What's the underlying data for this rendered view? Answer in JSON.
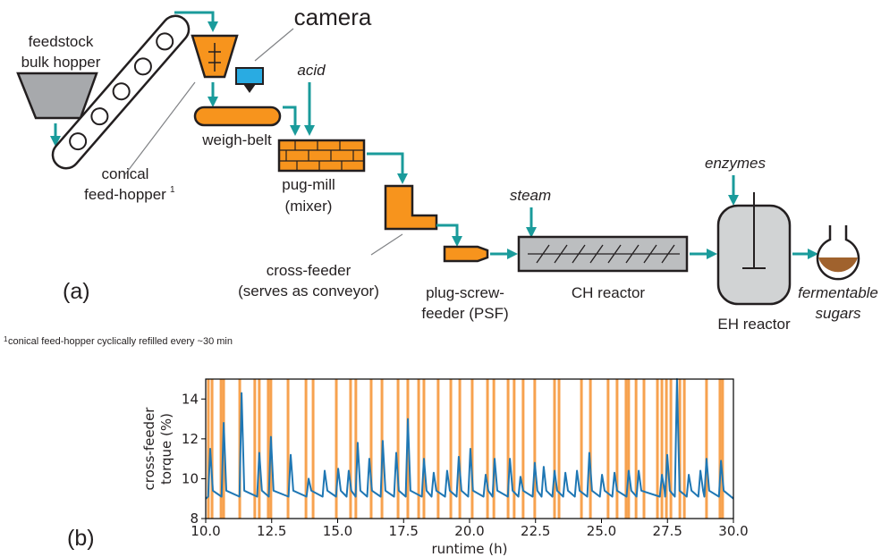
{
  "diagram": {
    "feedstock_line1": "feedstock",
    "feedstock_line2": "bulk hopper",
    "camera": "camera",
    "acid": "acid",
    "weigh_belt": "weigh-belt",
    "conical_line1": "conical",
    "conical_line2": "feed-hopper",
    "conical_note": "1",
    "pug_mill_line1": "pug-mill",
    "pug_mill_line2": "(mixer)",
    "cross_feeder_line1": "cross-feeder",
    "cross_feeder_line2": "(serves as conveyor)",
    "psf_line1": "plug-screw-",
    "psf_line2": "feeder (PSF)",
    "steam": "steam",
    "ch_reactor": "CH reactor",
    "enzymes": "enzymes",
    "eh_reactor": "EH reactor",
    "sugars_line1": "fermentable",
    "sugars_line2": "sugars",
    "panel_a": "(a)",
    "footnote_mark": "1",
    "footnote": "conical feed-hopper cyclically refilled every ~30 min",
    "panel_b": "(b)"
  },
  "chart_data": {
    "type": "line",
    "y_label_line1": "cross-feeder",
    "y_label_line2": "torque (%)",
    "x_label": "runtime (h)",
    "xlim": [
      10,
      30
    ],
    "ylim": [
      8,
      15
    ],
    "xticks": [
      {
        "value": 10,
        "label": "10.0"
      },
      {
        "value": 12.5,
        "label": "12.5"
      },
      {
        "value": 15,
        "label": "15.0"
      },
      {
        "value": 17.5,
        "label": "17.5"
      },
      {
        "value": 20,
        "label": "20.0"
      },
      {
        "value": 22.5,
        "label": "22.5"
      },
      {
        "value": 25,
        "label": "25.0"
      },
      {
        "value": 27.5,
        "label": "27.5"
      },
      {
        "value": 30,
        "label": "30.0"
      }
    ],
    "yticks": [
      8,
      10,
      12,
      14
    ],
    "x": [
      10.0,
      10.09,
      10.17,
      10.27,
      10.6,
      10.68,
      10.78,
      11.28,
      11.36,
      11.46,
      11.95,
      12.03,
      12.13,
      12.39,
      12.47,
      12.57,
      13.14,
      13.22,
      13.32,
      13.82,
      13.9,
      14.0,
      14.43,
      14.51,
      14.61,
      14.94,
      15.02,
      15.12,
      15.34,
      15.42,
      15.52,
      15.68,
      15.76,
      15.86,
      16.12,
      16.2,
      16.3,
      16.63,
      16.71,
      16.81,
      17.14,
      17.22,
      17.32,
      17.58,
      17.66,
      17.76,
      18.19,
      18.27,
      18.37,
      18.56,
      18.64,
      18.74,
      19.07,
      19.15,
      19.25,
      19.51,
      19.59,
      19.69,
      19.95,
      20.03,
      20.13,
      20.53,
      20.61,
      20.71,
      20.87,
      20.95,
      21.05,
      21.45,
      21.53,
      21.63,
      21.85,
      21.93,
      22.03,
      22.39,
      22.47,
      22.57,
      22.73,
      22.81,
      22.91,
      23.14,
      23.22,
      23.32,
      23.55,
      23.63,
      23.73,
      23.99,
      24.07,
      24.17,
      24.46,
      24.54,
      24.64,
      24.94,
      25.02,
      25.12,
      25.41,
      25.49,
      25.59,
      25.95,
      26.03,
      26.13,
      26.33,
      26.41,
      26.51,
      27.21,
      27.29,
      27.39,
      27.41,
      27.49,
      27.59,
      27.78,
      27.86,
      27.96,
      28.23,
      28.31,
      28.41,
      28.67,
      28.75,
      28.85,
      28.9,
      28.98,
      29.08,
      29.45,
      29.53,
      29.63,
      30.0
    ],
    "series": [
      {
        "color": "#1f77b4",
        "values": [
          9.0,
          9.1,
          11.5,
          9.4,
          9.1,
          12.8,
          9.4,
          9.1,
          14.3,
          9.4,
          9.1,
          11.3,
          9.4,
          9.1,
          12.1,
          9.4,
          9.1,
          11.2,
          9.4,
          9.1,
          10.0,
          9.4,
          9.1,
          10.4,
          9.4,
          9.1,
          10.5,
          9.4,
          9.1,
          10.4,
          9.4,
          9.1,
          11.8,
          9.4,
          9.1,
          11.0,
          9.4,
          9.1,
          11.9,
          9.4,
          9.1,
          11.3,
          9.4,
          9.1,
          13.0,
          9.4,
          9.1,
          11.0,
          9.4,
          9.1,
          10.3,
          9.4,
          9.1,
          10.4,
          9.4,
          9.1,
          11.1,
          9.4,
          9.1,
          11.5,
          9.4,
          9.1,
          10.2,
          9.4,
          9.1,
          11.0,
          9.4,
          9.1,
          11.0,
          9.4,
          9.1,
          10.1,
          9.4,
          9.1,
          10.8,
          9.4,
          9.1,
          10.6,
          9.4,
          9.1,
          10.4,
          9.4,
          9.1,
          10.3,
          9.4,
          9.1,
          10.4,
          9.4,
          9.1,
          11.3,
          9.4,
          9.1,
          10.2,
          9.4,
          9.1,
          10.3,
          9.4,
          9.1,
          10.4,
          9.4,
          9.1,
          10.4,
          9.4,
          9.1,
          10.2,
          9.4,
          9.1,
          11.2,
          9.4,
          9.1,
          15.0,
          9.4,
          9.1,
          10.2,
          9.4,
          9.1,
          10.4,
          9.4,
          9.1,
          11.0,
          9.4,
          9.1,
          10.9,
          9.4,
          9.0
        ]
      }
    ],
    "vlines": {
      "color": "#f7a24f",
      "x": [
        10.1,
        10.24,
        10.58,
        10.68,
        11.29,
        11.86,
        12.03,
        12.37,
        12.47,
        13.12,
        13.8,
        14.07,
        14.95,
        15.49,
        15.69,
        16.27,
        16.68,
        17.29,
        17.66,
        18.07,
        18.27,
        18.81,
        19.29,
        19.63,
        20.1,
        20.68,
        20.92,
        21.46,
        21.69,
        22.03,
        22.47,
        23.22,
        23.39,
        24.24,
        24.58,
        25.25,
        25.59,
        25.93,
        26.03,
        26.31,
        26.61,
        27.12,
        27.29,
        27.46,
        27.63,
        27.97,
        28.14,
        28.98,
        29.49,
        29.59
      ]
    }
  }
}
